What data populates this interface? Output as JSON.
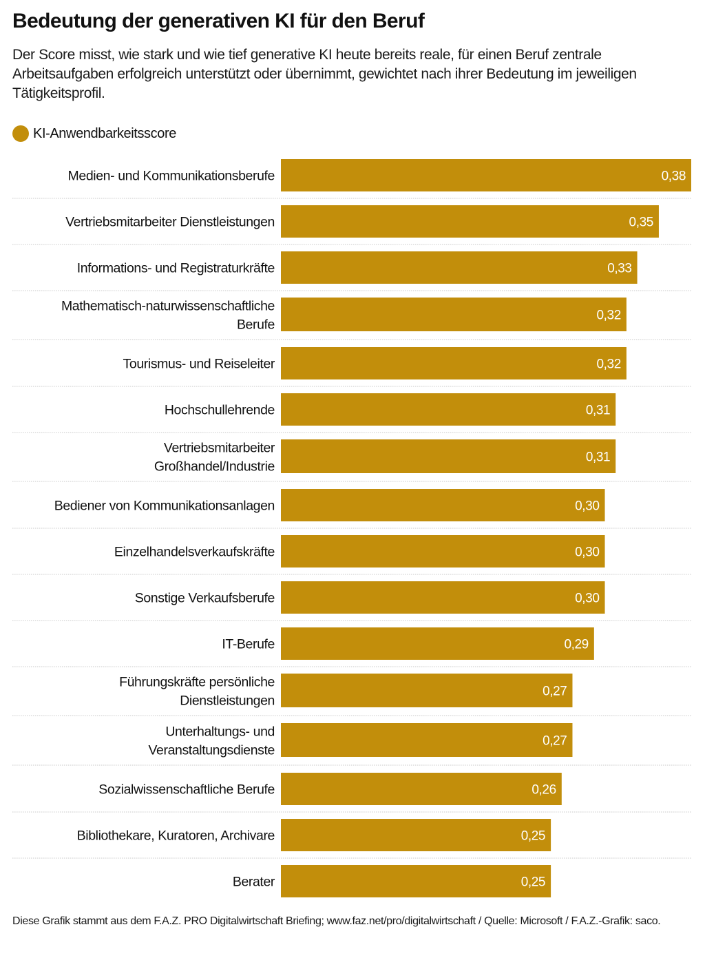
{
  "title": "Bedeutung der generativen KI für den Beruf",
  "subtitle": "Der Score misst, wie stark und wie tief generative KI heute bereits reale, für einen Beruf zentrale Arbeitsaufgaben erfolgreich unterstützt oder übernimmt, gewichtet nach ihrer Bedeutung im jeweiligen Tätigkeitsprofil.",
  "legend": {
    "label": "KI-Anwendbarkeitsscore",
    "color": "#c28e0b"
  },
  "footer": "Diese Grafik stammt aus dem F.A.Z. PRO Digitalwirtschaft Briefing; www.faz.net/pro/digitalwirtschaft / Quelle: Microsoft / F.A.Z.-Grafik: saco.",
  "chart_data": {
    "type": "bar",
    "orientation": "horizontal",
    "title": "Bedeutung der generativen KI für den Beruf",
    "xlabel": "",
    "ylabel": "",
    "xlim": [
      0,
      0.38
    ],
    "grid": false,
    "legend_position": "top-left",
    "series": [
      {
        "name": "KI-Anwendbarkeitsscore",
        "color": "#c28e0b",
        "values": [
          0.38,
          0.35,
          0.33,
          0.32,
          0.32,
          0.31,
          0.31,
          0.3,
          0.3,
          0.3,
          0.29,
          0.27,
          0.27,
          0.26,
          0.25,
          0.25
        ]
      }
    ],
    "categories": [
      [
        "Medien- und Kommunikationsberufe"
      ],
      [
        "Vertriebsmitarbeiter Dienstleistungen"
      ],
      [
        "Informations- und Registraturkräfte"
      ],
      [
        "Mathematisch-naturwissenschaftliche",
        "Berufe"
      ],
      [
        "Tourismus- und Reiseleiter"
      ],
      [
        "Hochschullehrende"
      ],
      [
        "Vertriebsmitarbeiter",
        "Großhandel/Industrie"
      ],
      [
        "Bediener von Kommunikationsanlagen"
      ],
      [
        "Einzelhandelsverkaufskräfte"
      ],
      [
        "Sonstige Verkaufsberufe"
      ],
      [
        "IT-Berufe"
      ],
      [
        "Führungskräfte persönliche",
        "Dienstleistungen"
      ],
      [
        "Unterhaltungs- und",
        "Veranstaltungsdienste"
      ],
      [
        "Sozialwissenschaftliche Berufe"
      ],
      [
        "Bibliothekare, Kuratoren, Archivare"
      ],
      [
        "Berater"
      ]
    ],
    "value_labels": [
      "0,38",
      "0,35",
      "0,33",
      "0,32",
      "0,32",
      "0,31",
      "0,31",
      "0,30",
      "0,30",
      "0,30",
      "0,29",
      "0,27",
      "0,27",
      "0,26",
      "0,25",
      "0,25"
    ]
  }
}
